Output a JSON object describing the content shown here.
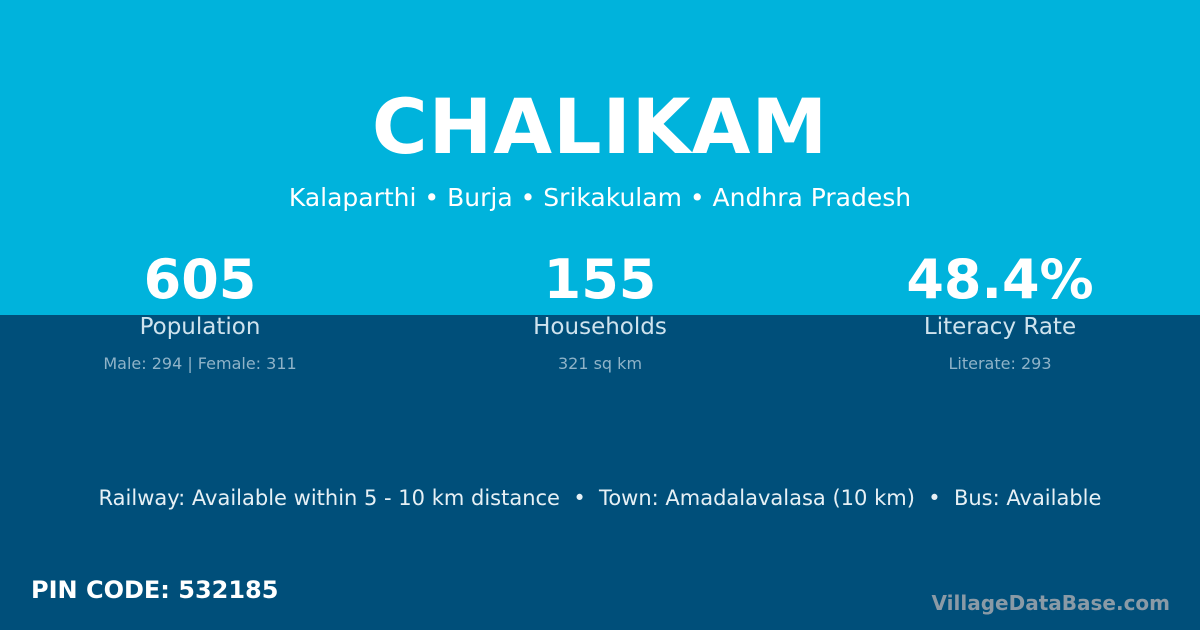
{
  "village": "CHALIKAM",
  "location": "Kalaparthi • Burja • Srikakulam • Andhra Pradesh",
  "stats": [
    {
      "value": "605",
      "label": "Population",
      "detail": "Male: 294 | Female: 311"
    },
    {
      "value": "155",
      "label": "Households",
      "detail": "321 sq km"
    },
    {
      "value": "48.4%",
      "label": "Literacy Rate",
      "detail": "Literate: 293"
    }
  ],
  "info": "Railway: Available within 5 - 10 km distance  •  Town: Amadalavalasa (10 km)  •  Bus: Available",
  "pin": "PIN CODE: 532185",
  "brand": "VillageDataBase.com",
  "colors": {
    "header": "#00b3dc",
    "body": "#004f7a"
  }
}
